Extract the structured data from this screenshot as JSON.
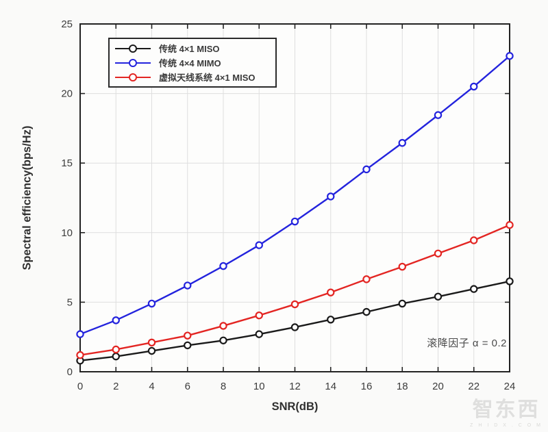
{
  "chart_data": {
    "type": "line",
    "title": "",
    "xlabel": "SNR(dB)",
    "ylabel": "Spectral efficiency(bps/Hz)",
    "xlim": [
      0,
      24
    ],
    "ylim": [
      0,
      25
    ],
    "xticks": [
      0,
      2,
      4,
      6,
      8,
      10,
      12,
      14,
      16,
      18,
      20,
      22,
      24
    ],
    "yticks": [
      0,
      5,
      10,
      15,
      20,
      25
    ],
    "grid": true,
    "legend_position": "top-left",
    "x": [
      0,
      2,
      4,
      6,
      8,
      10,
      12,
      14,
      16,
      18,
      20,
      22,
      24
    ],
    "series": [
      {
        "name": "传统 4×1 MISO",
        "color": "#1a1a1a",
        "marker": "circle",
        "values": [
          0.8,
          1.1,
          1.5,
          1.9,
          2.25,
          2.7,
          3.2,
          3.75,
          4.3,
          4.9,
          5.4,
          5.95,
          6.5
        ]
      },
      {
        "name": "传统 4×4 MIMO",
        "color": "#2323dd",
        "marker": "circle",
        "values": [
          2.7,
          3.7,
          4.9,
          6.2,
          7.6,
          9.1,
          10.8,
          12.6,
          14.55,
          16.45,
          18.45,
          20.5,
          22.7
        ]
      },
      {
        "name": "虚拟天线系统 4×1 MISO",
        "color": "#e32522",
        "marker": "circle",
        "values": [
          1.2,
          1.6,
          2.1,
          2.6,
          3.3,
          4.05,
          4.85,
          5.7,
          6.65,
          7.55,
          8.5,
          9.45,
          10.55
        ]
      }
    ],
    "annotation": "滚降因子 α = 0.2"
  },
  "watermark": {
    "logo_text": "智东西",
    "caption": "Z H I D X . C O M"
  }
}
